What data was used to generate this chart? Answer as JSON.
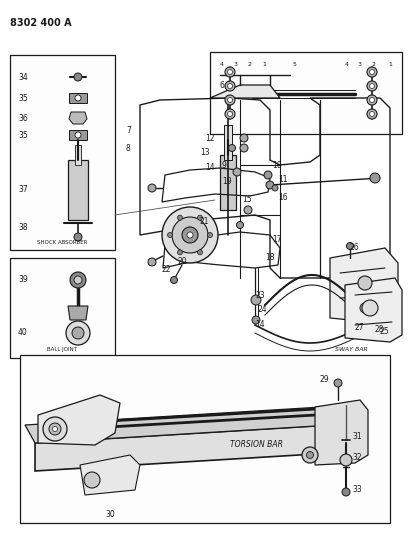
{
  "title_code": "8302 400 A",
  "bg": "#ffffff",
  "lc": "#1a1a1a",
  "gray1": "#888888",
  "gray2": "#aaaaaa",
  "gray3": "#cccccc",
  "fig_w": 4.1,
  "fig_h": 5.33,
  "dpi": 100,
  "labels": {
    "shock_absorber": "SHOCK ABSORBER",
    "ball_joint": "BALL JOINT",
    "torsion_bar": "TORSION BAR",
    "sway_bar": "SWAY BAR"
  }
}
